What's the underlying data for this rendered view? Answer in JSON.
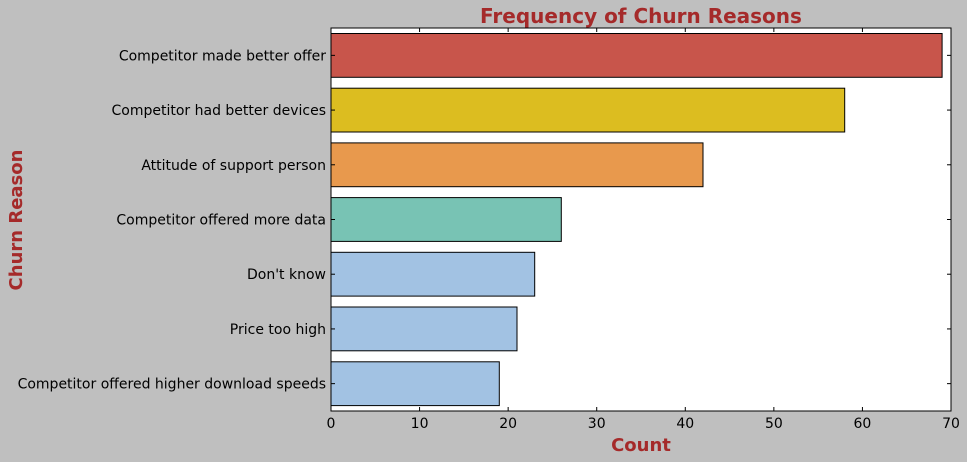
{
  "chart_data": {
    "type": "bar",
    "orientation": "horizontal",
    "title": "Frequency of Churn Reasons",
    "xlabel": "Count",
    "ylabel": "Churn Reason",
    "xlim": [
      0,
      70
    ],
    "xticks": [
      0,
      10,
      20,
      30,
      40,
      50,
      60,
      70
    ],
    "categories": [
      "Competitor made better offer",
      "Competitor had better devices",
      "Attitude of support person",
      "Competitor offered more data",
      "Don't know",
      "Price too high",
      "Competitor offered higher download speeds"
    ],
    "values": [
      69,
      58,
      42,
      26,
      23,
      21,
      19
    ],
    "bar_colors": [
      "#c8554b",
      "#dcbd20",
      "#e8994d",
      "#78c3b4",
      "#a2c2e3",
      "#a2c2e3",
      "#a2c2e3"
    ],
    "accent_color": "#a52a2a",
    "grid": false
  }
}
